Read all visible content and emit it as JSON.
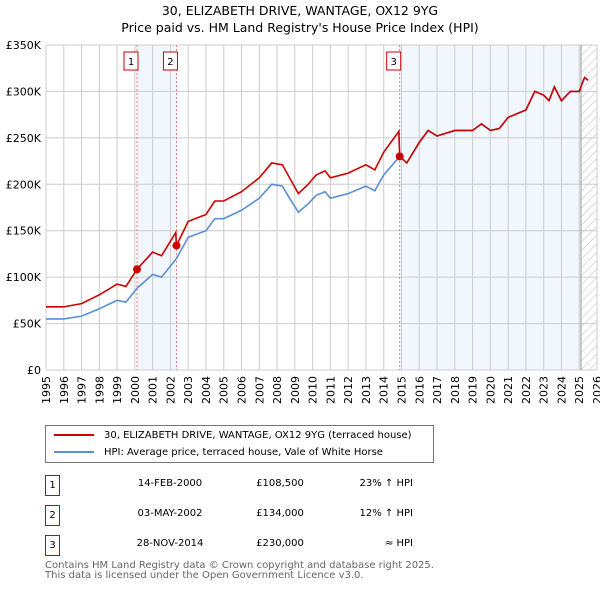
{
  "chart_data": {
    "type": "line",
    "title": "30, ELIZABETH DRIVE, WANTAGE, OX12 9YG",
    "subtitle": "Price paid vs. HM Land Registry's House Price Index (HPI)",
    "xlim": [
      1995,
      2026
    ],
    "ylim": [
      0,
      350000
    ],
    "x_ticks": [
      "1995",
      "1996",
      "1997",
      "1998",
      "1999",
      "2000",
      "2001",
      "2002",
      "2003",
      "2004",
      "2005",
      "2006",
      "2007",
      "2008",
      "2009",
      "2010",
      "2011",
      "2012",
      "2013",
      "2014",
      "2015",
      "2016",
      "2017",
      "2018",
      "2019",
      "2020",
      "2021",
      "2022",
      "2023",
      "2024",
      "2025",
      "2026"
    ],
    "y_ticks": [
      {
        "v": 0,
        "l": "£0"
      },
      {
        "v": 50000,
        "l": "£50K"
      },
      {
        "v": 100000,
        "l": "£100K"
      },
      {
        "v": 150000,
        "l": "£150K"
      },
      {
        "v": 200000,
        "l": "£200K"
      },
      {
        "v": 250000,
        "l": "£250K"
      },
      {
        "v": 300000,
        "l": "£300K"
      },
      {
        "v": 350000,
        "l": "£350K"
      }
    ],
    "grid": true,
    "series": [
      {
        "name": "30, ELIZABETH DRIVE, WANTAGE, OX12 9YG (terraced house)",
        "color": "#cc0000",
        "points": [
          [
            1995,
            68
          ],
          [
            1996,
            68
          ],
          [
            1997,
            71.5
          ],
          [
            1998,
            81
          ],
          [
            1999,
            92.5
          ],
          [
            1999.5,
            90
          ],
          [
            2000.12,
            108.5
          ],
          [
            2001,
            127
          ],
          [
            2001.5,
            123
          ],
          [
            2002.3,
            148
          ],
          [
            2002.34,
            134
          ],
          [
            2003,
            160
          ],
          [
            2004,
            167.5
          ],
          [
            2004.5,
            182
          ],
          [
            2005,
            182
          ],
          [
            2006,
            192
          ],
          [
            2007,
            207
          ],
          [
            2007.7,
            223
          ],
          [
            2008.3,
            221
          ],
          [
            2008.7,
            207
          ],
          [
            2009.2,
            190
          ],
          [
            2009.7,
            199
          ],
          [
            2010.2,
            210
          ],
          [
            2010.7,
            214.5
          ],
          [
            2011,
            207
          ],
          [
            2012,
            212
          ],
          [
            2013,
            221
          ],
          [
            2013.5,
            215.5
          ],
          [
            2014,
            234.5
          ],
          [
            2014.85,
            257
          ],
          [
            2014.9,
            230
          ],
          [
            2015.3,
            223
          ],
          [
            2016,
            245
          ],
          [
            2016.5,
            258
          ],
          [
            2017,
            252
          ],
          [
            2018,
            258
          ],
          [
            2019,
            258
          ],
          [
            2019.5,
            265
          ],
          [
            2020,
            258
          ],
          [
            2020.5,
            260
          ],
          [
            2021,
            272
          ],
          [
            2022,
            280
          ],
          [
            2022.5,
            300
          ],
          [
            2023,
            296
          ],
          [
            2023.3,
            290
          ],
          [
            2023.6,
            305
          ],
          [
            2024,
            290
          ],
          [
            2024.5,
            300
          ],
          [
            2025,
            300
          ],
          [
            2025.3,
            315
          ],
          [
            2025.5,
            312
          ]
        ]
      },
      {
        "name": "HPI: Average price, terraced house, Vale of White Horse",
        "color": "#5b8fd4",
        "points": [
          [
            1995,
            55
          ],
          [
            1996,
            55
          ],
          [
            1997,
            58
          ],
          [
            1998,
            66
          ],
          [
            1999,
            75
          ],
          [
            1999.5,
            73
          ],
          [
            2000.12,
            88
          ],
          [
            2001,
            103
          ],
          [
            2001.5,
            100
          ],
          [
            2002.34,
            120
          ],
          [
            2003,
            143
          ],
          [
            2004,
            150
          ],
          [
            2004.5,
            163
          ],
          [
            2005,
            163
          ],
          [
            2006,
            172
          ],
          [
            2007,
            185
          ],
          [
            2007.7,
            200
          ],
          [
            2008.3,
            198
          ],
          [
            2008.7,
            185
          ],
          [
            2009.2,
            170
          ],
          [
            2009.7,
            178
          ],
          [
            2010.2,
            188
          ],
          [
            2010.7,
            192
          ],
          [
            2011,
            185
          ],
          [
            2012,
            190
          ],
          [
            2013,
            198
          ],
          [
            2013.5,
            193
          ],
          [
            2014,
            210
          ],
          [
            2014.9,
            230
          ],
          [
            2015.3,
            223
          ],
          [
            2016,
            245
          ],
          [
            2016.5,
            258
          ],
          [
            2017,
            252
          ],
          [
            2018,
            258
          ],
          [
            2019,
            258
          ],
          [
            2019.5,
            265
          ],
          [
            2020,
            258
          ],
          [
            2020.5,
            260
          ],
          [
            2021,
            272
          ],
          [
            2022,
            280
          ],
          [
            2022.5,
            300
          ],
          [
            2023,
            296
          ],
          [
            2023.3,
            290
          ],
          [
            2023.6,
            305
          ],
          [
            2024,
            290
          ],
          [
            2024.5,
            300
          ],
          [
            2025,
            300
          ],
          [
            2025.3,
            315
          ],
          [
            2025.5,
            312
          ]
        ]
      }
    ],
    "y_units": "thousands GBP",
    "sales": [
      {
        "label": "1",
        "x": 2000.12,
        "y": 108.5
      },
      {
        "label": "2",
        "x": 2002.34,
        "y": 134
      },
      {
        "label": "3",
        "x": 2014.9,
        "y": 230
      }
    ],
    "shaded": [
      [
        2000.12,
        2002.34
      ],
      [
        2014.9,
        2026
      ]
    ],
    "forecast_hatch_from": 2025.1
  },
  "legend": {
    "red": "30, ELIZABETH DRIVE, WANTAGE, OX12 9YG (terraced house)",
    "blue": "HPI: Average price, terraced house, Vale of White Horse"
  },
  "transactions": [
    {
      "num": "1",
      "date": "14-FEB-2000",
      "price": "£108,500",
      "hpi": "23% ↑ HPI"
    },
    {
      "num": "2",
      "date": "03-MAY-2002",
      "price": "£134,000",
      "hpi": "12% ↑ HPI"
    },
    {
      "num": "3",
      "date": "28-NOV-2014",
      "price": "£230,000",
      "hpi": "≈ HPI"
    }
  ],
  "footer": {
    "line1": "Contains HM Land Registry data © Crown copyright and database right 2025.",
    "line2": "This data is licensed under the Open Government Licence v3.0."
  }
}
